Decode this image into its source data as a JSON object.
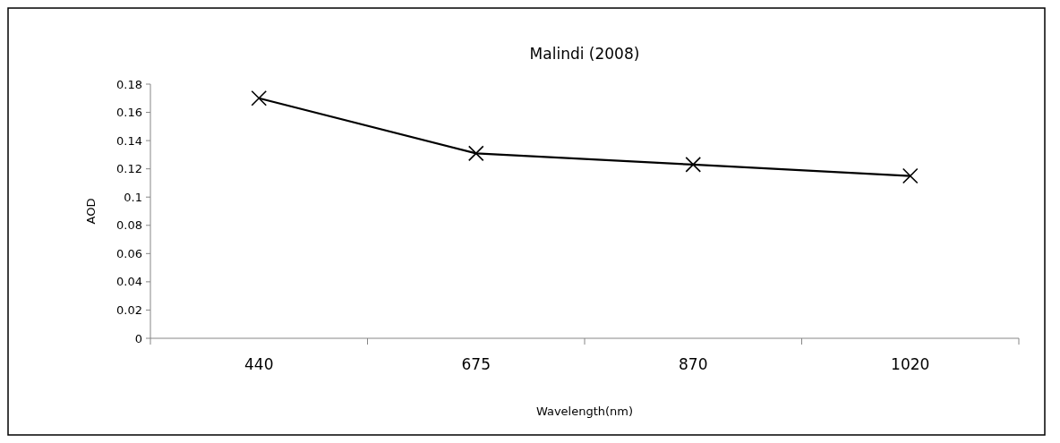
{
  "chart_data": {
    "type": "line",
    "title": "Malindi (2008)",
    "xlabel": "Wavelength(nm)",
    "ylabel": "AOD",
    "categories": [
      "440",
      "675",
      "870",
      "1020"
    ],
    "series": [
      {
        "color": "#000000",
        "values": [
          0.17,
          0.131,
          0.123,
          0.115
        ]
      }
    ],
    "ylim": [
      0,
      0.18
    ],
    "yticks": [
      0,
      0.02,
      0.04,
      0.06,
      0.08,
      0.1,
      0.12,
      0.14,
      0.16,
      0.18
    ],
    "marker": "cross",
    "line_style": "solid",
    "grid": false
  }
}
